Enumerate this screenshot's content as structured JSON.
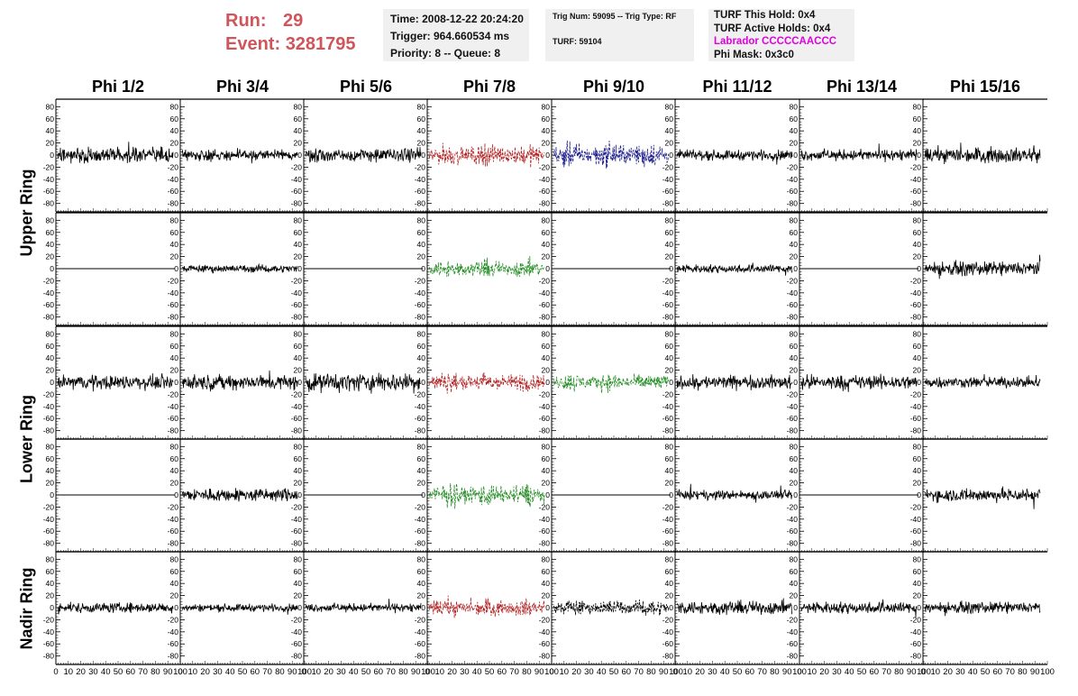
{
  "header": {
    "run_label": "Run:",
    "run_value": "29",
    "event_label": "Event:",
    "event_value": "3281795",
    "time": "Time: 2008-12-22 20:24:20",
    "trigger": "Trigger: 964.660534 ms",
    "priority": "Priority: 8 -- Queue: 8",
    "trig_num": "Trig Num: 59095 -- Trig Type: RF",
    "turf": "TURF: 59104",
    "turf_this_hold": "TURF This Hold: 0x4",
    "turf_active_holds": "TURF Active Holds: 0x4",
    "labrador": "Labrador CCCCCAACCC",
    "phi_mask": "Phi Mask: 0x3c0"
  },
  "columns": [
    "Phi 1/2",
    "Phi 3/4",
    "Phi 5/6",
    "Phi 7/8",
    "Phi 9/10",
    "Phi 11/12",
    "Phi 13/14",
    "Phi 15/16"
  ],
  "rows": [
    "Upper Ring",
    "Lower Ring",
    "Nadir Ring"
  ],
  "chart_data": {
    "type": "line",
    "xlim": [
      0,
      100
    ],
    "ylim": [
      -85,
      85
    ],
    "x_ticks": [
      0,
      10,
      20,
      30,
      40,
      50,
      60,
      70,
      80,
      90,
      100
    ],
    "y_ticks": [
      -80,
      -60,
      -40,
      -20,
      0,
      20,
      40,
      60,
      80
    ],
    "colors": {
      "normal": "#000000",
      "triggered_red": "#b22222",
      "triggered_blue": "#1c1c8c",
      "triggered_green": "#228b22"
    },
    "panel_rows": [
      {
        "ring": "Upper Ring",
        "panels": [
          {
            "col": 1,
            "style": "solid",
            "color": "#000000",
            "amplitude": 18
          },
          {
            "col": 2,
            "style": "solid",
            "color": "#000000",
            "amplitude": 14
          },
          {
            "col": 3,
            "style": "solid",
            "color": "#000000",
            "amplitude": 16
          },
          {
            "col": 4,
            "style": "dashed",
            "color": "#b22222",
            "amplitude": 26
          },
          {
            "col": 5,
            "style": "dashed",
            "color": "#1c1c8c",
            "amplitude": 30
          },
          {
            "col": 6,
            "style": "solid",
            "color": "#000000",
            "amplitude": 12
          },
          {
            "col": 7,
            "style": "solid",
            "color": "#000000",
            "amplitude": 13
          },
          {
            "col": 8,
            "style": "solid",
            "color": "#000000",
            "amplitude": 18
          }
        ]
      },
      {
        "ring": "Upper Ring",
        "panels": [
          {
            "col": 1,
            "style": "flat",
            "color": "#000000",
            "amplitude": 0
          },
          {
            "col": 2,
            "style": "solid",
            "color": "#000000",
            "amplitude": 9
          },
          {
            "col": 3,
            "style": "flat",
            "color": "#000000",
            "amplitude": 0
          },
          {
            "col": 4,
            "style": "dashed",
            "color": "#228b22",
            "amplitude": 22
          },
          {
            "col": 5,
            "style": "flat",
            "color": "#000000",
            "amplitude": 0
          },
          {
            "col": 6,
            "style": "solid",
            "color": "#000000",
            "amplitude": 10
          },
          {
            "col": 7,
            "style": "flat",
            "color": "#000000",
            "amplitude": 0
          },
          {
            "col": 8,
            "style": "solid",
            "color": "#000000",
            "amplitude": 16
          }
        ]
      },
      {
        "ring": "Lower Ring",
        "panels": [
          {
            "col": 1,
            "style": "solid",
            "color": "#000000",
            "amplitude": 17
          },
          {
            "col": 2,
            "style": "solid",
            "color": "#000000",
            "amplitude": 18
          },
          {
            "col": 3,
            "style": "solid",
            "color": "#000000",
            "amplitude": 22
          },
          {
            "col": 4,
            "style": "dashed",
            "color": "#b22222",
            "amplitude": 24
          },
          {
            "col": 5,
            "style": "dashed",
            "color": "#228b22",
            "amplitude": 22
          },
          {
            "col": 6,
            "style": "solid",
            "color": "#000000",
            "amplitude": 16
          },
          {
            "col": 7,
            "style": "solid",
            "color": "#000000",
            "amplitude": 17
          },
          {
            "col": 8,
            "style": "solid",
            "color": "#000000",
            "amplitude": 13
          }
        ]
      },
      {
        "ring": "Lower Ring",
        "panels": [
          {
            "col": 1,
            "style": "flat",
            "color": "#000000",
            "amplitude": 0
          },
          {
            "col": 2,
            "style": "solid",
            "color": "#000000",
            "amplitude": 16
          },
          {
            "col": 3,
            "style": "flat",
            "color": "#000000",
            "amplitude": 0
          },
          {
            "col": 4,
            "style": "dashed",
            "color": "#228b22",
            "amplitude": 28
          },
          {
            "col": 5,
            "style": "flat",
            "color": "#000000",
            "amplitude": 0
          },
          {
            "col": 6,
            "style": "solid",
            "color": "#000000",
            "amplitude": 11
          },
          {
            "col": 7,
            "style": "flat",
            "color": "#000000",
            "amplitude": 0
          },
          {
            "col": 8,
            "style": "solid",
            "color": "#000000",
            "amplitude": 16
          }
        ]
      },
      {
        "ring": "Nadir Ring",
        "panels": [
          {
            "col": 1,
            "style": "solid",
            "color": "#000000",
            "amplitude": 12
          },
          {
            "col": 2,
            "style": "solid",
            "color": "#000000",
            "amplitude": 9
          },
          {
            "col": 3,
            "style": "solid",
            "color": "#000000",
            "amplitude": 10
          },
          {
            "col": 4,
            "style": "dashed",
            "color": "#b22222",
            "amplitude": 22
          },
          {
            "col": 5,
            "style": "dashed",
            "color": "#000000",
            "amplitude": 20
          },
          {
            "col": 6,
            "style": "solid",
            "color": "#000000",
            "amplitude": 16
          },
          {
            "col": 7,
            "style": "solid",
            "color": "#000000",
            "amplitude": 14
          },
          {
            "col": 8,
            "style": "solid",
            "color": "#000000",
            "amplitude": 13
          }
        ]
      }
    ]
  }
}
